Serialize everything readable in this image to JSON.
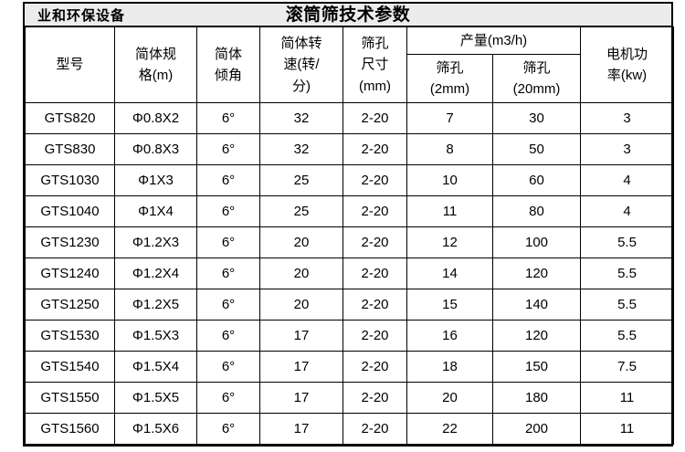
{
  "titlebar": {
    "brand": "业和环保设备",
    "title": "滚筒筛技术参数",
    "background_color": "#ececec"
  },
  "table": {
    "columns": [
      {
        "label": "型号"
      },
      {
        "label": "简体规\n格(m)"
      },
      {
        "label": "简体\n倾角"
      },
      {
        "label": "简体转\n速(转/\n分)"
      },
      {
        "label": "筛孔\n尺寸\n(mm)"
      },
      {
        "label": "产量(m3/h)",
        "children": [
          "筛孔\n(2mm)",
          "筛孔\n(20mm)"
        ]
      },
      {
        "label": "电机功\n率(kw)"
      }
    ],
    "rows": [
      [
        "GTS820",
        "Φ0.8X2",
        "6°",
        "32",
        "2-20",
        "7",
        "30",
        "3"
      ],
      [
        "GTS830",
        "Φ0.8X3",
        "6°",
        "32",
        "2-20",
        "8",
        "50",
        "3"
      ],
      [
        "GTS1030",
        "Φ1X3",
        "6°",
        "25",
        "2-20",
        "10",
        "60",
        "4"
      ],
      [
        "GTS1040",
        "Φ1X4",
        "6°",
        "25",
        "2-20",
        "11",
        "80",
        "4"
      ],
      [
        "GTS1230",
        "Φ1.2X3",
        "6°",
        "20",
        "2-20",
        "12",
        "100",
        "5.5"
      ],
      [
        "GTS1240",
        "Φ1.2X4",
        "6°",
        "20",
        "2-20",
        "14",
        "120",
        "5.5"
      ],
      [
        "GTS1250",
        "Φ1.2X5",
        "6°",
        "20",
        "2-20",
        "15",
        "140",
        "5.5"
      ],
      [
        "GTS1530",
        "Φ1.5X3",
        "6°",
        "17",
        "2-20",
        "16",
        "120",
        "5.5"
      ],
      [
        "GTS1540",
        "Φ1.5X4",
        "6°",
        "17",
        "2-20",
        "18",
        "150",
        "7.5"
      ],
      [
        "GTS1550",
        "Φ1.5X5",
        "6°",
        "17",
        "2-20",
        "20",
        "180",
        "11"
      ],
      [
        "GTS1560",
        "Φ1.5X6",
        "6°",
        "17",
        "2-20",
        "22",
        "200",
        "11"
      ]
    ]
  }
}
